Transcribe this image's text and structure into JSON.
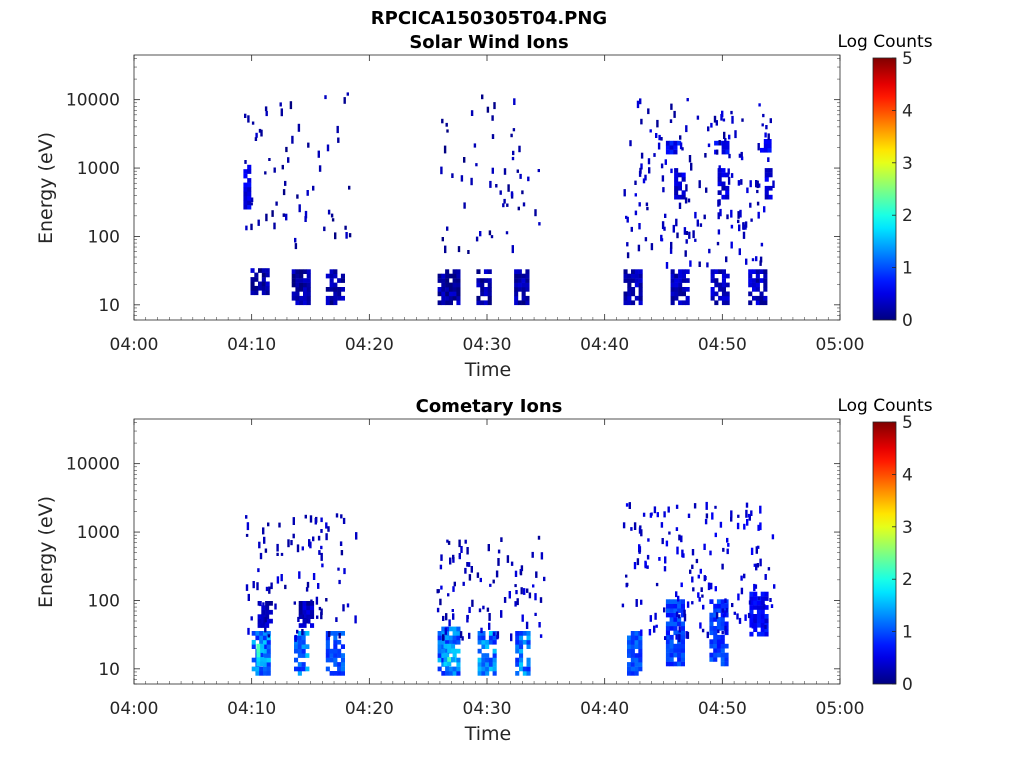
{
  "figure_title": "RPCICA150305T04.PNG",
  "colorbar": {
    "label": "Log Counts",
    "ticks": [
      "0",
      "1",
      "2",
      "3",
      "4",
      "5"
    ],
    "range": [
      0,
      5
    ],
    "colormap": "jet"
  },
  "chart_data": [
    {
      "type": "heatmap",
      "title": "Solar Wind Ions",
      "xlabel": "Time",
      "ylabel": "Energy (eV)",
      "x_ticks": [
        "04:00",
        "04:10",
        "04:20",
        "04:30",
        "04:40",
        "04:50",
        "05:00"
      ],
      "y_ticks": [
        "10",
        "100",
        "1000",
        "10000"
      ],
      "y_scale": "log",
      "ylim": [
        6,
        45000
      ],
      "xlim_minutes": [
        0,
        60
      ],
      "z_range": [
        0,
        5
      ],
      "regions": [
        {
          "t": [
            9.3,
            9.8
          ],
          "e": [
            250,
            1100
          ],
          "v": 0.5
        },
        {
          "t": [
            9.9,
            11.3
          ],
          "e": [
            14,
            30
          ],
          "v": 0.2
        },
        {
          "t": [
            13.4,
            14.8
          ],
          "e": [
            10,
            30
          ],
          "v": 0.2
        },
        {
          "t": [
            16.3,
            17.7
          ],
          "e": [
            10,
            30
          ],
          "v": 0.2
        },
        {
          "t": [
            25.8,
            27.6
          ],
          "e": [
            10,
            30
          ],
          "v": 0.2
        },
        {
          "t": [
            29.1,
            30.3
          ],
          "e": [
            10,
            30
          ],
          "v": 0.2
        },
        {
          "t": [
            32.3,
            33.4
          ],
          "e": [
            10,
            30
          ],
          "v": 0.2
        },
        {
          "t": [
            41.6,
            43.2
          ],
          "e": [
            10,
            30
          ],
          "v": 0.3
        },
        {
          "t": [
            45.6,
            46.9
          ],
          "e": [
            10,
            30
          ],
          "v": 0.3
        },
        {
          "t": [
            49.0,
            50.6
          ],
          "e": [
            10,
            30
          ],
          "v": 0.3
        },
        {
          "t": [
            52.2,
            53.8
          ],
          "e": [
            10,
            30
          ],
          "v": 0.3
        },
        {
          "t": [
            45.2,
            46.3
          ],
          "e": [
            1600,
            2300
          ],
          "v": 0.6
        },
        {
          "t": [
            49.3,
            50.4
          ],
          "e": [
            1600,
            2300
          ],
          "v": 0.6
        },
        {
          "t": [
            53.2,
            54.1
          ],
          "e": [
            1700,
            2600
          ],
          "v": 0.6
        },
        {
          "t": [
            45.9,
            46.6
          ],
          "e": [
            350,
            900
          ],
          "v": 0.4
        },
        {
          "t": [
            49.6,
            50.5
          ],
          "e": [
            350,
            900
          ],
          "v": 0.4
        },
        {
          "t": [
            53.6,
            54.1
          ],
          "e": [
            350,
            900
          ],
          "v": 0.4
        }
      ],
      "scatter_windows": [
        {
          "t": [
            9.3,
            18.3
          ],
          "e": [
            60,
            13000
          ],
          "n": 60,
          "v": 0.2
        },
        {
          "t": [
            25.8,
            35.0
          ],
          "e": [
            60,
            13000
          ],
          "n": 55,
          "v": 0.2
        },
        {
          "t": [
            41.5,
            54.3
          ],
          "e": [
            40,
            11000
          ],
          "n": 160,
          "v": 0.3
        }
      ]
    },
    {
      "type": "heatmap",
      "title": "Cometary Ions",
      "xlabel": "Time",
      "ylabel": "Energy (eV)",
      "x_ticks": [
        "04:00",
        "04:10",
        "04:20",
        "04:30",
        "04:40",
        "04:50",
        "05:00"
      ],
      "y_ticks": [
        "10",
        "100",
        "1000",
        "10000"
      ],
      "y_scale": "log",
      "ylim": [
        6,
        45000
      ],
      "xlim_minutes": [
        0,
        60
      ],
      "z_range": [
        0,
        5
      ],
      "regions": [
        {
          "t": [
            10.0,
            11.5
          ],
          "e": [
            8,
            35
          ],
          "v": 1.2
        },
        {
          "t": [
            10.4,
            11.0
          ],
          "e": [
            11,
            22
          ],
          "v": 1.8
        },
        {
          "t": [
            13.6,
            14.7
          ],
          "e": [
            8,
            35
          ],
          "v": 1.2
        },
        {
          "t": [
            16.3,
            17.6
          ],
          "e": [
            8,
            35
          ],
          "v": 1.0
        },
        {
          "t": [
            25.8,
            27.6
          ],
          "e": [
            8,
            40
          ],
          "v": 1.2
        },
        {
          "t": [
            26.3,
            27.0
          ],
          "e": [
            11,
            22
          ],
          "v": 1.8
        },
        {
          "t": [
            29.2,
            30.6
          ],
          "e": [
            8,
            35
          ],
          "v": 1.2
        },
        {
          "t": [
            32.4,
            33.6
          ],
          "e": [
            8,
            35
          ],
          "v": 1.2
        },
        {
          "t": [
            41.9,
            43.1
          ],
          "e": [
            8,
            35
          ],
          "v": 1.0
        },
        {
          "t": [
            45.2,
            46.8
          ],
          "e": [
            11,
            90
          ],
          "v": 0.9
        },
        {
          "t": [
            48.9,
            50.4
          ],
          "e": [
            11,
            90
          ],
          "v": 0.9
        },
        {
          "t": [
            52.3,
            53.9
          ],
          "e": [
            30,
            130
          ],
          "v": 0.6
        },
        {
          "t": [
            10.5,
            11.5
          ],
          "e": [
            40,
            90
          ],
          "v": 0.3
        },
        {
          "t": [
            14.0,
            15.0
          ],
          "e": [
            40,
            90
          ],
          "v": 0.3
        }
      ],
      "scatter_windows": [
        {
          "t": [
            9.4,
            18.8
          ],
          "e": [
            30,
            2000
          ],
          "n": 90,
          "v": 0.3
        },
        {
          "t": [
            25.6,
            34.8
          ],
          "e": [
            30,
            900
          ],
          "n": 90,
          "v": 0.3
        },
        {
          "t": [
            41.4,
            54.6
          ],
          "e": [
            30,
            2800
          ],
          "n": 160,
          "v": 0.4
        }
      ]
    }
  ]
}
